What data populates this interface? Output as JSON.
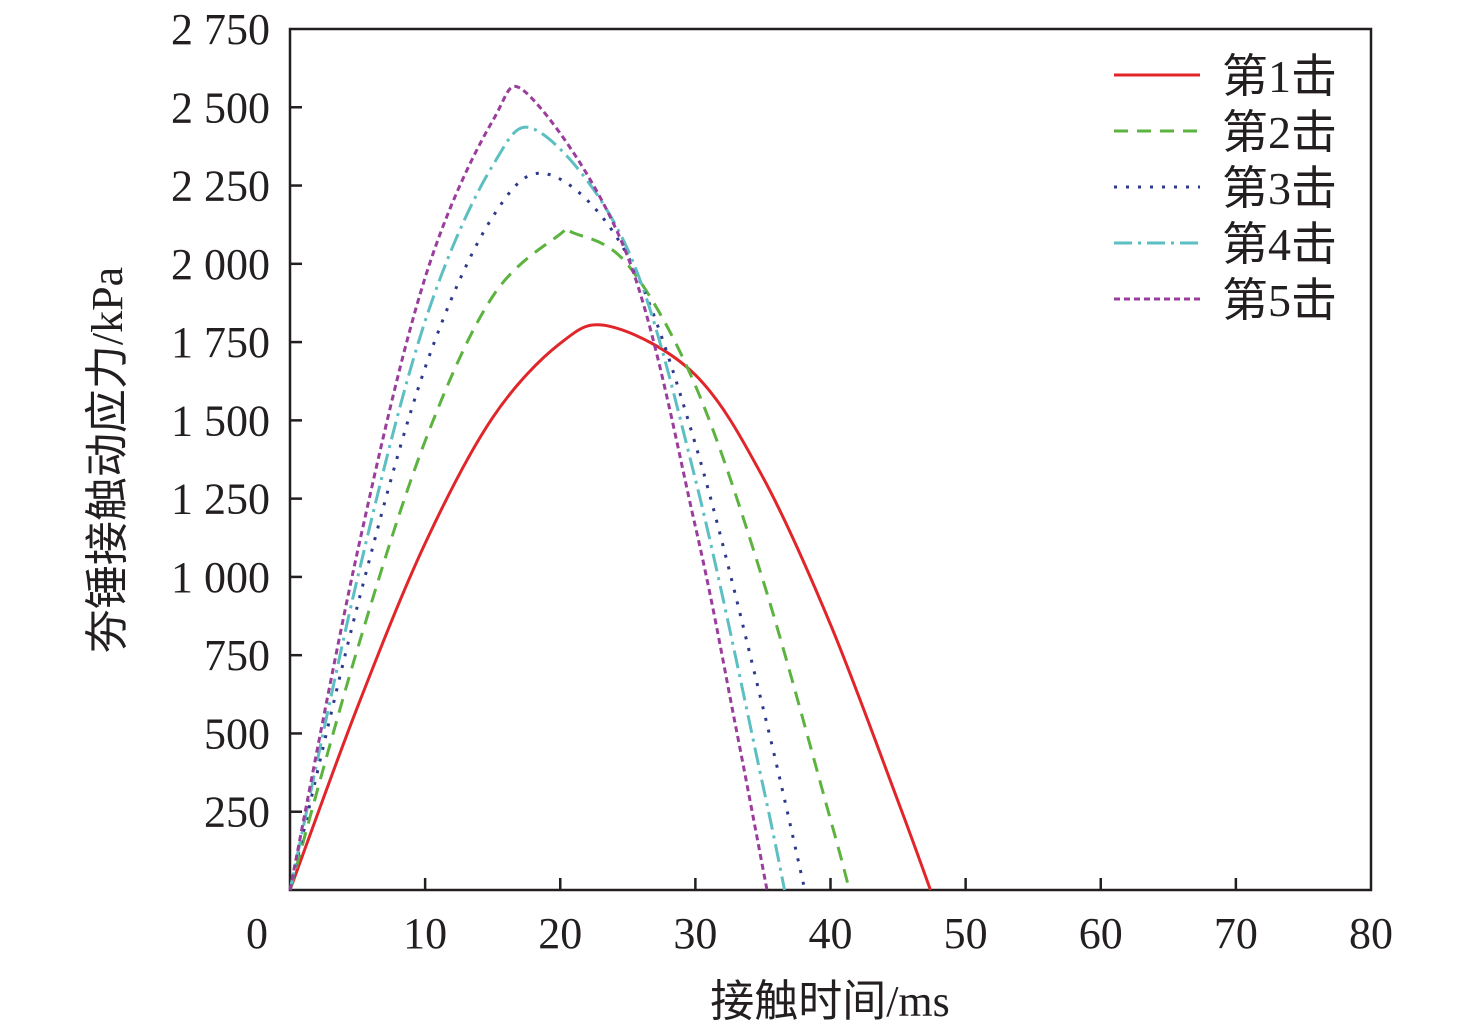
{
  "chart_data": {
    "type": "line",
    "title": "",
    "xlabel": "接触时间/ms",
    "ylabel": "夯锤接触动应力/kPa",
    "xlim": [
      0,
      80
    ],
    "ylim": [
      0,
      2750
    ],
    "xticks": [
      "0",
      "10",
      "20",
      "30",
      "40",
      "50",
      "60",
      "70",
      "80"
    ],
    "xtick_values": [
      0,
      10,
      20,
      30,
      40,
      50,
      60,
      70,
      80
    ],
    "yticks": [
      "250",
      "500",
      "750",
      "1 000",
      "1 250",
      "1 500",
      "1 750",
      "2 000",
      "2 250",
      "2 500",
      "2 750"
    ],
    "ytick_values": [
      250,
      500,
      750,
      1000,
      1250,
      1500,
      1750,
      2000,
      2250,
      2500,
      2750
    ],
    "grid": false,
    "legend_position": "top-right",
    "series": [
      {
        "name": "第1击",
        "color": "#e0262a",
        "style": "solid",
        "x": [
          0,
          5,
          10,
          15,
          20,
          23.7,
          30,
          35,
          40,
          45,
          47.4
        ],
        "y": [
          0,
          585,
          1107,
          1509,
          1746,
          1800,
          1645,
          1318,
          848,
          283,
          0
        ]
      },
      {
        "name": "第2击",
        "color": "#5db33f",
        "style": "dashed",
        "x": [
          0,
          5,
          10,
          15,
          20,
          20.9,
          25,
          30,
          35,
          40,
          41.4
        ],
        "y": [
          0,
          771,
          1434,
          1896,
          2095,
          2100,
          1997,
          1611,
          990,
          225,
          0
        ]
      },
      {
        "name": "第3击",
        "color": "#2d3a8c",
        "style": "dotted",
        "x": [
          0,
          5,
          10,
          15,
          19.2,
          25,
          30,
          35,
          38.1
        ],
        "y": [
          0,
          909,
          1668,
          2150,
          2285,
          2025,
          1424,
          583,
          0
        ]
      },
      {
        "name": "第4击",
        "color": "#5cbfc2",
        "style": "dashdot",
        "x": [
          0,
          5,
          10,
          15,
          18.5,
          25,
          30,
          35,
          36.6
        ],
        "y": [
          0,
          997,
          1817,
          2314,
          2420,
          2045,
          1312,
          334,
          0
        ]
      },
      {
        "name": "第5击",
        "color": "#9a3d9c",
        "style": "shortdash",
        "x": [
          0,
          5,
          10,
          15,
          17.8,
          25,
          30,
          33,
          35.3
        ],
        "y": [
          0,
          1082,
          1956,
          2457,
          2533,
          2022,
          1161,
          519,
          0
        ]
      }
    ]
  }
}
